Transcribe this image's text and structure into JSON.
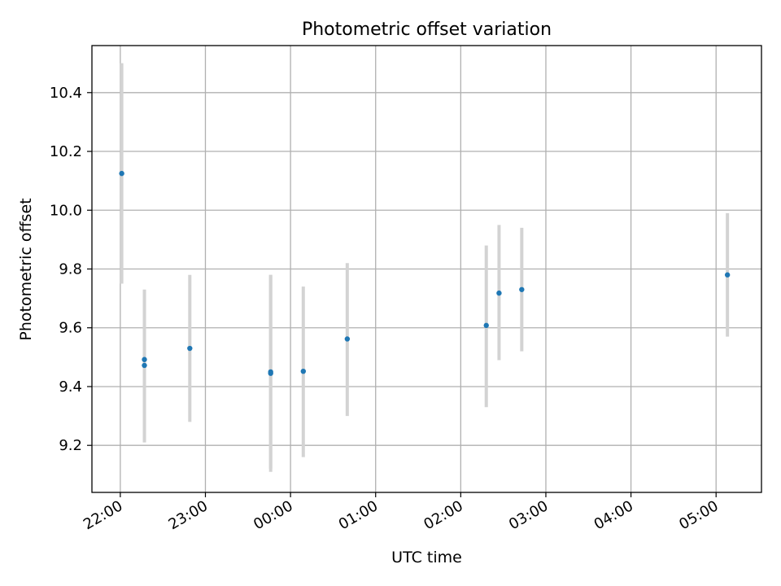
{
  "chart_data": {
    "type": "scatter",
    "title": "Photometric offset variation",
    "xlabel": "UTC time",
    "ylabel": "Photometric offset",
    "grid": true,
    "x_ticks": [
      "22:00",
      "23:00",
      "00:00",
      "01:00",
      "02:00",
      "03:00",
      "04:00",
      "05:00"
    ],
    "y_ticks": [
      "9.2",
      "9.4",
      "9.6",
      "9.8",
      "10.0",
      "10.2",
      "10.4"
    ],
    "xlim": [
      "21:40",
      "05:32"
    ],
    "ylim": [
      9.04,
      10.56
    ],
    "colors": {
      "point": "#1f77b4",
      "errorbar": "#d3d3d3",
      "grid": "#b0b0b0"
    },
    "points": [
      {
        "x": "22:01",
        "y": 10.125,
        "err_low": 9.75,
        "err_high": 10.5
      },
      {
        "x": "22:17",
        "y": 9.492,
        "err_low": 9.29,
        "err_high": 9.7
      },
      {
        "x": "22:17",
        "y": 9.472,
        "err_low": 9.21,
        "err_high": 9.73
      },
      {
        "x": "22:49",
        "y": 9.53,
        "err_low": 9.28,
        "err_high": 9.78
      },
      {
        "x": "23:46",
        "y": 9.445,
        "err_low": 9.11,
        "err_high": 9.78
      },
      {
        "x": "23:46",
        "y": 9.45,
        "err_low": 9.12,
        "err_high": 9.78
      },
      {
        "x": "00:09",
        "y": 9.452,
        "err_low": 9.16,
        "err_high": 9.74
      },
      {
        "x": "00:40",
        "y": 9.562,
        "err_low": 9.3,
        "err_high": 9.82
      },
      {
        "x": "02:18",
        "y": 9.608,
        "err_low": 9.33,
        "err_high": 9.88
      },
      {
        "x": "02:27",
        "y": 9.718,
        "err_low": 9.49,
        "err_high": 9.95
      },
      {
        "x": "02:43",
        "y": 9.73,
        "err_low": 9.52,
        "err_high": 9.94
      },
      {
        "x": "05:08",
        "y": 9.78,
        "err_low": 9.57,
        "err_high": 9.99
      }
    ]
  }
}
